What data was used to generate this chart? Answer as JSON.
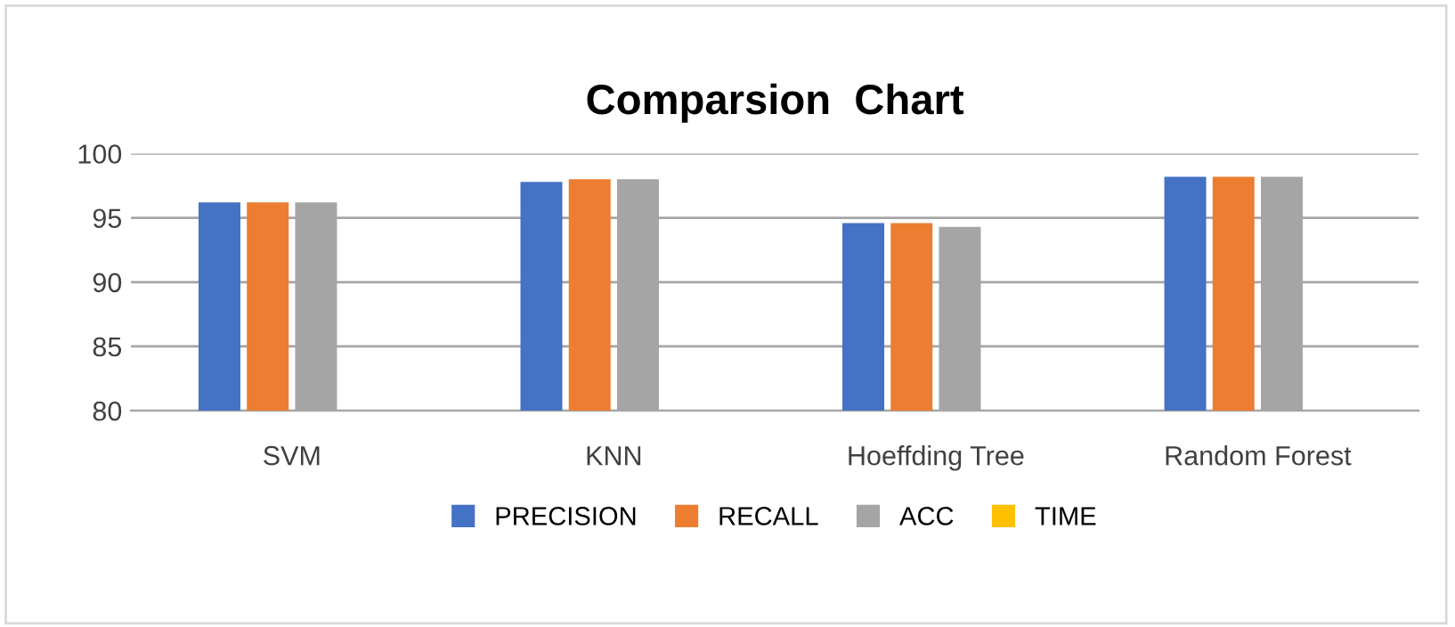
{
  "chart_data": {
    "type": "bar",
    "title": "Comparsion  Chart",
    "categories": [
      "SVM",
      "KNN",
      "Hoeffding Tree",
      "Random Forest"
    ],
    "series": [
      {
        "name": "PRECISION",
        "color": "#4472c4",
        "values": [
          96.2,
          97.8,
          94.6,
          98.2
        ]
      },
      {
        "name": "RECALL",
        "color": "#ed7d31",
        "values": [
          96.2,
          98.0,
          94.6,
          98.2
        ]
      },
      {
        "name": "ACC",
        "color": "#a5a5a5",
        "values": [
          96.2,
          98.0,
          94.3,
          98.2
        ]
      },
      {
        "name": "TIME",
        "color": "#ffc000",
        "values": [
          null,
          null,
          null,
          null
        ]
      }
    ],
    "ylim": [
      80,
      100
    ],
    "yticks": [
      80,
      85,
      90,
      95,
      100
    ],
    "grid": "y",
    "legend": "bottom"
  }
}
